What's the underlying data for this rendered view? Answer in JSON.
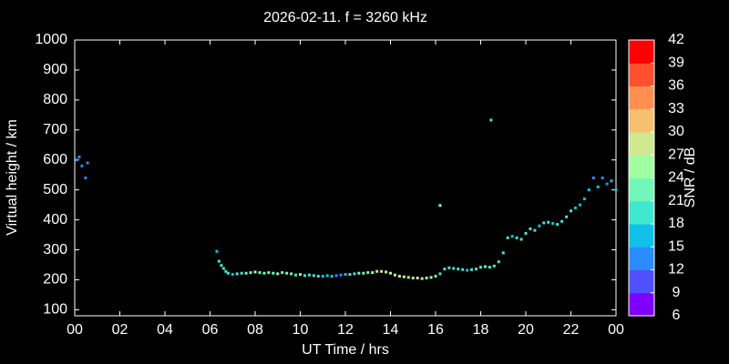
{
  "chart_data": {
    "type": "scatter",
    "title": "2026-02-11. f = 3260 kHz",
    "xlabel": "UT Time / hrs",
    "ylabel": "Virtual height / km",
    "colorbar_label": "SNR / dB",
    "xlim": [
      0,
      24
    ],
    "xticks": [
      {
        "value": 0,
        "label": "00"
      },
      {
        "value": 2,
        "label": "02"
      },
      {
        "value": 4,
        "label": "04"
      },
      {
        "value": 6,
        "label": "06"
      },
      {
        "value": 8,
        "label": "08"
      },
      10,
      12,
      14,
      16,
      18,
      20,
      22,
      {
        "value": 24,
        "label": "00"
      }
    ],
    "ylim": [
      80,
      1000
    ],
    "yticks": [
      100,
      200,
      300,
      400,
      500,
      600,
      700,
      800,
      900,
      1000
    ],
    "clim": [
      6,
      42
    ],
    "cticks": [
      6,
      9,
      12,
      15,
      18,
      21,
      24,
      27,
      30,
      33,
      36,
      39,
      42
    ],
    "colormap": [
      "#8000ff",
      "#5050ff",
      "#2a8cff",
      "#10c0e8",
      "#40e8d0",
      "#70f8b8",
      "#a0ffa0",
      "#d0e890",
      "#f5c070",
      "#ff9050",
      "#ff5030",
      "#ff0000"
    ],
    "x": [
      0.08,
      0.2,
      0.32,
      0.48,
      0.57,
      6.3,
      6.4,
      6.5,
      6.6,
      6.7,
      6.8,
      7.0,
      7.2,
      7.4,
      7.6,
      7.8,
      8.0,
      8.2,
      8.4,
      8.6,
      8.8,
      9.0,
      9.2,
      9.4,
      9.6,
      9.8,
      10.0,
      10.2,
      10.4,
      10.6,
      10.8,
      11.0,
      11.2,
      11.4,
      11.6,
      11.8,
      12.0,
      12.2,
      12.4,
      12.6,
      12.8,
      13.0,
      13.2,
      13.4,
      13.6,
      13.8,
      14.0,
      14.2,
      14.4,
      14.6,
      14.8,
      15.0,
      15.2,
      15.4,
      15.6,
      15.8,
      16.0,
      16.2,
      16.4,
      16.6,
      16.8,
      17.0,
      17.2,
      17.4,
      17.6,
      17.8,
      18.0,
      18.2,
      18.4,
      18.6,
      18.8,
      19.0,
      19.2,
      19.4,
      19.6,
      19.8,
      20.0,
      20.2,
      20.4,
      20.6,
      20.8,
      21.0,
      21.2,
      21.4,
      21.6,
      21.8,
      22.0,
      22.2,
      22.4,
      22.6,
      22.8,
      23.0,
      23.2,
      23.4,
      23.6,
      23.8,
      24.0,
      16.2,
      18.46
    ],
    "y": [
      600,
      610,
      580,
      540,
      590,
      295,
      262,
      248,
      238,
      228,
      222,
      218,
      220,
      222,
      222,
      224,
      226,
      224,
      222,
      224,
      222,
      220,
      224,
      222,
      220,
      216,
      218,
      214,
      216,
      214,
      212,
      212,
      214,
      212,
      214,
      216,
      218,
      218,
      220,
      222,
      222,
      224,
      224,
      228,
      228,
      226,
      222,
      216,
      212,
      210,
      208,
      206,
      206,
      204,
      206,
      208,
      212,
      220,
      236,
      240,
      238,
      236,
      234,
      232,
      234,
      236,
      242,
      244,
      242,
      246,
      260,
      290,
      340,
      345,
      340,
      335,
      355,
      370,
      365,
      380,
      390,
      392,
      388,
      385,
      395,
      410,
      430,
      440,
      450,
      470,
      500,
      540,
      510,
      540,
      520,
      530,
      500,
      448,
      733
    ],
    "snr": [
      13,
      12,
      12,
      13,
      12,
      17,
      19,
      20,
      20,
      19,
      18,
      17,
      19,
      20,
      21,
      22,
      24,
      23,
      22,
      23,
      22,
      24,
      22,
      23,
      22,
      20,
      21,
      20,
      19,
      20,
      18,
      17,
      16,
      15,
      14,
      13,
      16,
      18,
      20,
      21,
      22,
      23,
      24,
      25,
      27,
      26,
      25,
      27,
      28,
      27,
      26,
      25,
      27,
      28,
      26,
      25,
      22,
      20,
      19,
      18,
      19,
      20,
      18,
      17,
      18,
      19,
      20,
      21,
      20,
      19,
      20,
      19,
      18,
      17,
      18,
      19,
      20,
      19,
      18,
      17,
      19,
      18,
      17,
      18,
      19,
      20,
      18,
      16,
      17,
      15,
      16,
      14,
      15,
      13,
      14,
      15,
      16,
      25,
      20
    ]
  }
}
